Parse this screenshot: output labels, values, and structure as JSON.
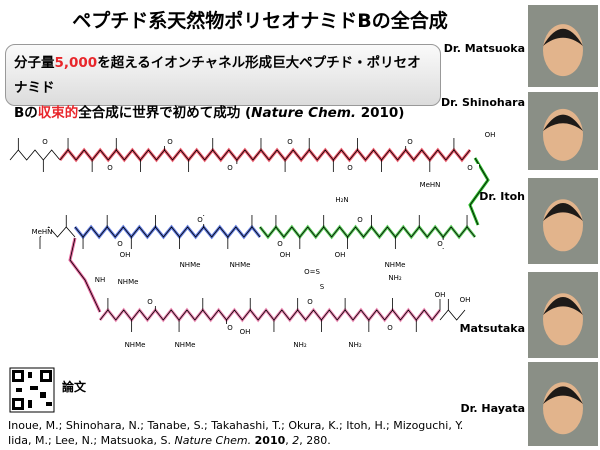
{
  "title": "ペプチド系天然物ポリセオナミドBの全合成",
  "highlight": {
    "lines": [
      [
        {
          "text": "分子量"
        },
        {
          "text": "5,000",
          "color": "#e8262b"
        },
        {
          "text": "を超えるイオンチャネル形成巨大ペプチド・ポリセオナミド"
        }
      ],
      [
        {
          "text": "B"
        },
        {
          "text": "の"
        },
        {
          "text": "収束的",
          "color": "#e8262b"
        },
        {
          "text": "全合成に世界で初めて成功 ("
        },
        {
          "text": "Nature Chem.",
          "italic": true
        },
        {
          "text": " 2010)"
        }
      ]
    ]
  },
  "people": [
    "Dr. Matsuoka",
    "Dr. Shinohara",
    "Dr. Itoh",
    "Matsutaka",
    "Dr. Hayata"
  ],
  "qr_label": "論文",
  "structure": {
    "labels": [
      "MeHN",
      "H₂N",
      "NHMe",
      "OH",
      "NH₂",
      "O",
      "S",
      "NH",
      "O=S"
    ]
  },
  "citation": {
    "lines": [
      [
        {
          "text": "Inoue, M.; Shinohara, N.; Tanabe, S.; Takahashi, T.; Okura, K.; Itoh, H.; Mizoguchi, Y."
        }
      ],
      [
        {
          "text": "Iida, M.; Lee, N.; Matsuoka, S. "
        },
        {
          "text": "Nature Chem.",
          "italic": true
        },
        {
          "text": " "
        },
        {
          "text": "2010",
          "bold": true
        },
        {
          "text": ", "
        },
        {
          "text": "2",
          "italic": true
        },
        {
          "text": ", 280."
        }
      ]
    ]
  }
}
